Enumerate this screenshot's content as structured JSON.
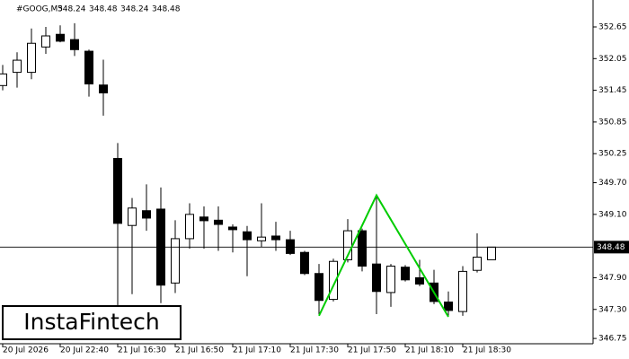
{
  "chart_data": {
    "type": "candlestick",
    "title": "#GOOG,M5",
    "last_ohlc": [
      348.24,
      348.48,
      348.24,
      348.48
    ],
    "watermark": "InstaFintech",
    "categories": [
      "20 Jul 2026",
      null,
      null,
      null,
      "20 Jul 22:40",
      null,
      null,
      null,
      "21 Jul 16:30",
      null,
      null,
      null,
      "21 Jul 16:50",
      null,
      null,
      null,
      "21 Jul 17:10",
      null,
      null,
      null,
      "21 Jul 17:30",
      null,
      null,
      null,
      "21 Jul 17:50",
      null,
      null,
      null,
      "21 Jul 18:10",
      null,
      null,
      null,
      "21 Jul 18:30",
      null,
      null
    ],
    "open": [
      351.54,
      351.79,
      351.79,
      352.27,
      352.51,
      352.41,
      352.19,
      351.55,
      350.16,
      348.89,
      349.17,
      349.2,
      347.8,
      348.64,
      349.05,
      348.99,
      348.86,
      348.77,
      348.6,
      348.69,
      348.62,
      348.38,
      347.98,
      347.49,
      348.24,
      348.79,
      348.16,
      347.62,
      348.1,
      347.9,
      347.8,
      347.44,
      347.26,
      348.04,
      348.24
    ],
    "high": [
      351.93,
      352.17,
      352.62,
      352.65,
      352.68,
      352.72,
      352.22,
      352.03,
      350.45,
      349.41,
      349.67,
      349.61,
      348.99,
      349.31,
      349.25,
      349.25,
      348.91,
      348.88,
      349.31,
      348.96,
      348.79,
      348.41,
      348.16,
      348.26,
      349.01,
      348.83,
      349.46,
      348.16,
      348.14,
      348.24,
      348.05,
      347.64,
      348.12,
      348.74,
      348.48
    ],
    "low": [
      351.45,
      351.5,
      351.66,
      352.14,
      352.36,
      352.1,
      351.33,
      350.97,
      347.28,
      347.59,
      348.79,
      347.42,
      347.61,
      348.45,
      348.45,
      348.41,
      348.38,
      347.93,
      348.48,
      348.41,
      348.33,
      347.95,
      347.21,
      347.45,
      348.19,
      348.02,
      347.21,
      347.35,
      347.83,
      347.74,
      347.4,
      347.18,
      347.18,
      348.0,
      348.24
    ],
    "close": [
      351.76,
      352.02,
      352.34,
      352.48,
      352.38,
      352.22,
      351.57,
      351.4,
      348.93,
      349.22,
      349.03,
      347.76,
      348.64,
      349.1,
      348.98,
      348.91,
      348.81,
      348.62,
      348.67,
      348.62,
      348.36,
      347.98,
      347.47,
      348.21,
      348.79,
      348.12,
      347.64,
      348.12,
      347.86,
      347.78,
      347.45,
      347.28,
      348.02,
      348.29,
      348.48
    ],
    "current_price": 348.48,
    "pattern_candles": [
      22,
      26,
      31
    ],
    "pattern_values": [
      347.18,
      349.46,
      347.16
    ],
    "pattern_color": "#00cc00",
    "ylim": [
      346.65,
      353.16
    ],
    "yticks": [
      352.65,
      352.05,
      351.45,
      350.85,
      350.25,
      {
        "value": 349.7,
        "label": "349.70"
      },
      {
        "value": 349.1,
        "label": "349.10"
      },
      {
        "value": 347.9,
        "label": "347.90"
      },
      {
        "value": 347.3,
        "label": "347.30"
      },
      346.75
    ]
  }
}
